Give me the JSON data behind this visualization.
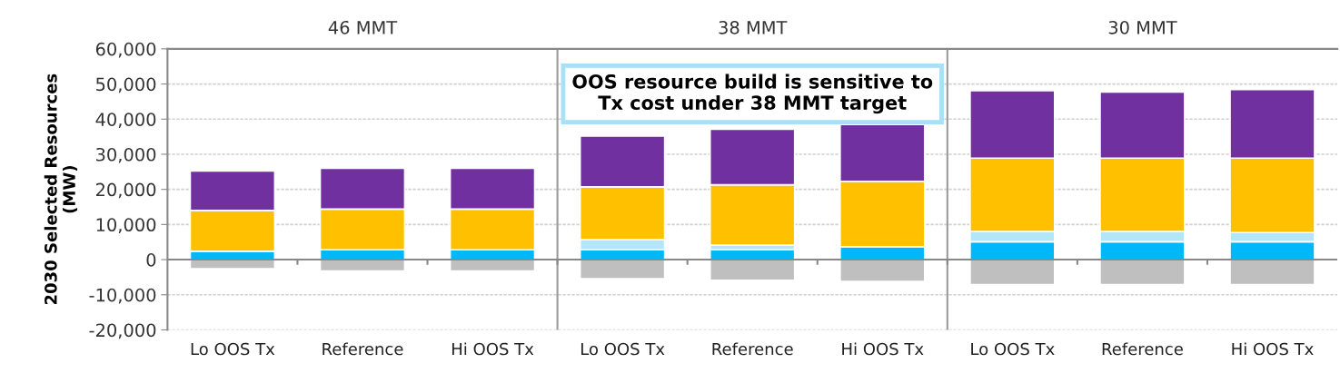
{
  "chart_data": {
    "type": "bar",
    "stacked": true,
    "ylabel": "2030 Selected Resources\n(MW)",
    "categories": [
      "Lo OOS Tx",
      "Reference",
      "Hi OOS Tx",
      "Lo OOS Tx",
      "Reference",
      "Hi OOS Tx",
      "Lo OOS Tx",
      "Reference",
      "Hi OOS Tx"
    ],
    "series": [
      {
        "color": "#00b8f8",
        "values": [
          2400,
          2800,
          2800,
          2800,
          2800,
          3700,
          5100,
          5100,
          5100
        ]
      },
      {
        "color": "#b4e6fa",
        "values": [
          0,
          0,
          0,
          2900,
          1300,
          0,
          2900,
          2900,
          2600
        ]
      },
      {
        "color": "#ffc000",
        "values": [
          11600,
          11600,
          11600,
          15000,
          17200,
          18600,
          20900,
          20900,
          21200
        ]
      },
      {
        "color": "#7030a0",
        "values": [
          11200,
          11600,
          11600,
          14500,
          15800,
          16200,
          19200,
          18800,
          19500
        ]
      },
      {
        "color": "#bfbfbf",
        "values": [
          -2600,
          -3200,
          -3200,
          -5400,
          -5900,
          -6200,
          -7100,
          -7100,
          -7100
        ]
      }
    ],
    "ylim": [
      -20000,
      60000
    ],
    "yticks": [
      {
        "value": -20000,
        "label": "-20,000"
      },
      {
        "value": -10000,
        "label": "-10,000"
      },
      {
        "value": 0,
        "label": "0"
      },
      {
        "value": 10000,
        "label": "10,000"
      },
      {
        "value": 20000,
        "label": "20,000"
      },
      {
        "value": 30000,
        "label": "30,000"
      },
      {
        "value": 40000,
        "label": "40,000"
      },
      {
        "value": 50000,
        "label": "50,000"
      },
      {
        "value": 60000,
        "label": "60,000"
      }
    ],
    "annotations": [
      "46 MMT",
      "38 MMT",
      "30 MMT",
      "OOS resource build is sensitive to\nTx cost under 38 MMT target"
    ],
    "grid": "y",
    "legend": false
  }
}
